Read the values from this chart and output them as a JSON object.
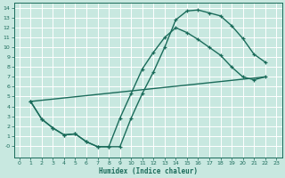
{
  "xlabel": "Humidex (Indice chaleur)",
  "bg_color": "#c8e8e0",
  "grid_color": "#b0d8d0",
  "line_color": "#1a6b5a",
  "xlim": [
    -0.5,
    23.5
  ],
  "ylim": [
    -1.2,
    14.5
  ],
  "xticks": [
    0,
    1,
    2,
    3,
    4,
    5,
    6,
    7,
    8,
    9,
    10,
    11,
    12,
    13,
    14,
    15,
    16,
    17,
    18,
    19,
    20,
    21,
    22,
    23
  ],
  "yticks": [
    0,
    1,
    2,
    3,
    4,
    5,
    6,
    7,
    8,
    9,
    10,
    11,
    12,
    13,
    14
  ],
  "ytick_labels": [
    "-0",
    "1",
    "2",
    "3",
    "4",
    "5",
    "6",
    "7",
    "8",
    "9",
    "10",
    "11",
    "12",
    "13",
    "14"
  ],
  "line1_x": [
    1,
    2,
    3,
    4,
    5,
    6,
    7,
    8,
    9,
    10,
    11,
    12,
    13,
    14,
    15,
    16,
    17,
    18,
    19,
    20,
    21,
    22
  ],
  "line1_y": [
    4.5,
    2.7,
    1.8,
    1.1,
    1.2,
    0.4,
    -0.1,
    -0.1,
    -0.1,
    2.8,
    5.3,
    7.5,
    10.0,
    12.8,
    13.7,
    13.8,
    13.5,
    13.2,
    12.2,
    10.9,
    9.3,
    8.5
  ],
  "line2_x": [
    1,
    2,
    3,
    4,
    5,
    6,
    7,
    8,
    9,
    10,
    11,
    12,
    13,
    14,
    15,
    16,
    17,
    18,
    19,
    20,
    21,
    22
  ],
  "line2_y": [
    4.5,
    2.7,
    1.8,
    1.1,
    1.2,
    0.4,
    -0.1,
    -0.1,
    2.8,
    5.3,
    7.8,
    9.5,
    11.0,
    12.0,
    11.5,
    10.8,
    10.0,
    9.2,
    8.0,
    7.0,
    6.7,
    7.0
  ],
  "line3_x": [
    1,
    22
  ],
  "line3_y": [
    4.5,
    7.0
  ]
}
